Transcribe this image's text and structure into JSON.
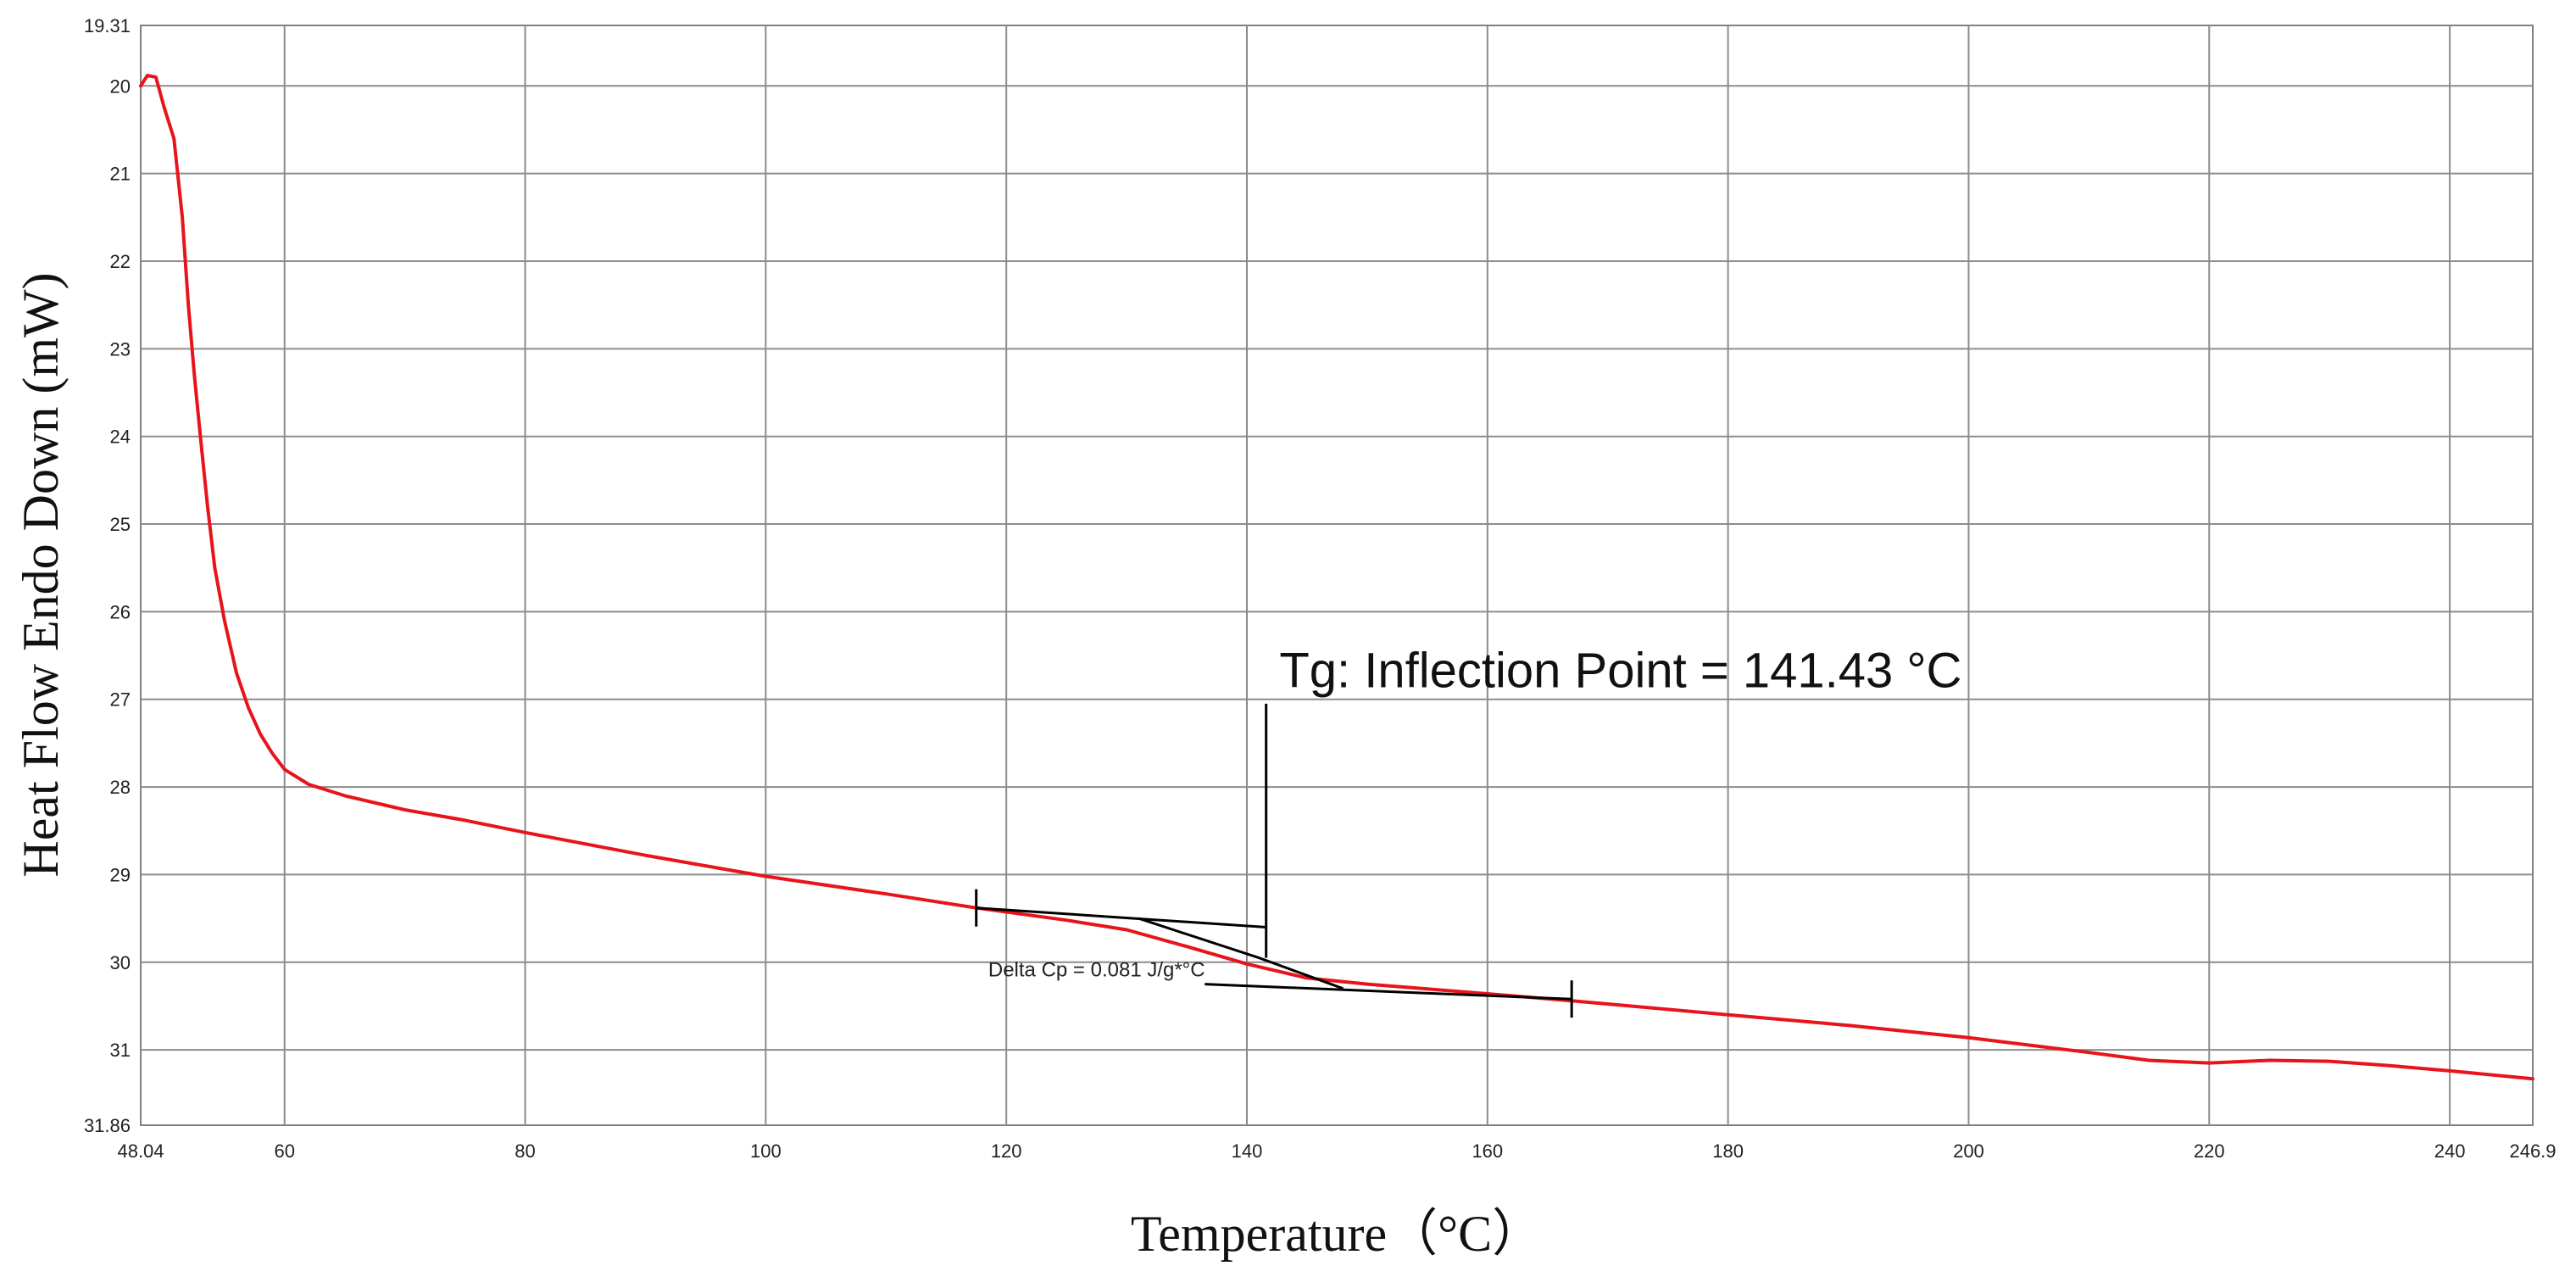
{
  "chart_data": {
    "type": "line",
    "title": "",
    "xlabel": "Temperature（°C）",
    "ylabel": "Heat Flow Endo Down (mW)",
    "xlim": [
      48.04,
      246.9
    ],
    "ylim": [
      19.31,
      31.86
    ],
    "y_inverted": true,
    "grid": true,
    "x_ticks": [
      {
        "value": 48.04,
        "label": "48.04"
      },
      {
        "value": 60,
        "label": "60"
      },
      {
        "value": 80,
        "label": "80"
      },
      {
        "value": 100,
        "label": "100"
      },
      {
        "value": 120,
        "label": "120"
      },
      {
        "value": 140,
        "label": "140"
      },
      {
        "value": 160,
        "label": "160"
      },
      {
        "value": 180,
        "label": "180"
      },
      {
        "value": 200,
        "label": "200"
      },
      {
        "value": 220,
        "label": "220"
      },
      {
        "value": 240,
        "label": "240"
      },
      {
        "value": 246.9,
        "label": "246.9"
      }
    ],
    "y_ticks": [
      {
        "value": 19.31,
        "label": "19.31"
      },
      {
        "value": 20,
        "label": "20"
      },
      {
        "value": 21,
        "label": "21"
      },
      {
        "value": 22,
        "label": "22"
      },
      {
        "value": 23,
        "label": "23"
      },
      {
        "value": 24,
        "label": "24"
      },
      {
        "value": 25,
        "label": "25"
      },
      {
        "value": 26,
        "label": "26"
      },
      {
        "value": 27,
        "label": "27"
      },
      {
        "value": 28,
        "label": "28"
      },
      {
        "value": 29,
        "label": "29"
      },
      {
        "value": 30,
        "label": "30"
      },
      {
        "value": 31,
        "label": "31"
      },
      {
        "value": 31.86,
        "label": "31.86"
      }
    ],
    "series": [
      {
        "color": "#e8141c",
        "points": [
          [
            48.04,
            20.0
          ],
          [
            48.6,
            19.88
          ],
          [
            49.3,
            19.9
          ],
          [
            50.0,
            20.25
          ],
          [
            50.8,
            20.6
          ],
          [
            51.5,
            21.5
          ],
          [
            52.0,
            22.5
          ],
          [
            52.5,
            23.3
          ],
          [
            53.0,
            24.0
          ],
          [
            53.6,
            24.8
          ],
          [
            54.2,
            25.5
          ],
          [
            55.0,
            26.1
          ],
          [
            56.0,
            26.7
          ],
          [
            57.0,
            27.1
          ],
          [
            58.0,
            27.4
          ],
          [
            59.0,
            27.62
          ],
          [
            60.0,
            27.8
          ],
          [
            62.0,
            27.97
          ],
          [
            65.0,
            28.1
          ],
          [
            70.0,
            28.26
          ],
          [
            75.0,
            28.38
          ],
          [
            80.0,
            28.52
          ],
          [
            90.0,
            28.78
          ],
          [
            100.0,
            29.02
          ],
          [
            110.0,
            29.22
          ],
          [
            117.5,
            29.38
          ],
          [
            125.0,
            29.52
          ],
          [
            130.0,
            29.63
          ],
          [
            135.0,
            29.82
          ],
          [
            140.0,
            30.02
          ],
          [
            145.0,
            30.18
          ],
          [
            150.0,
            30.25
          ],
          [
            160.0,
            30.36
          ],
          [
            167.0,
            30.44
          ],
          [
            180.0,
            30.6
          ],
          [
            190.0,
            30.72
          ],
          [
            200.0,
            30.86
          ],
          [
            210.0,
            31.03
          ],
          [
            215.0,
            31.12
          ],
          [
            220.0,
            31.15
          ],
          [
            225.0,
            31.12
          ],
          [
            230.0,
            31.13
          ],
          [
            235.0,
            31.18
          ],
          [
            240.0,
            31.24
          ],
          [
            246.9,
            31.33
          ]
        ]
      }
    ],
    "construction_lines": [
      {
        "color": "#000000",
        "points": [
          [
            117.5,
            29.38
          ],
          [
            141.5,
            29.6
          ]
        ]
      },
      {
        "color": "#000000",
        "points": [
          [
            131.0,
            29.5
          ],
          [
            141.0,
            29.95
          ],
          [
            148.0,
            30.3
          ]
        ]
      },
      {
        "color": "#000000",
        "points": [
          [
            136.5,
            30.25
          ],
          [
            167.0,
            30.42
          ]
        ]
      },
      {
        "color": "#000000",
        "points": [
          [
            141.6,
            27.05
          ],
          [
            141.6,
            29.95
          ]
        ]
      }
    ],
    "tick_marks": [
      {
        "x": 117.5,
        "y": 29.38
      },
      {
        "x": 167.0,
        "y": 30.42
      }
    ],
    "annotations": [
      {
        "text": "Tg: Inflection Point = 141.43 °C",
        "x": 142.0,
        "y": 27.0,
        "size": "large"
      },
      {
        "text": "Delta Cp = 0.081 J/g*°C",
        "x": 118.5,
        "y": 30.16,
        "size": "small"
      }
    ]
  }
}
